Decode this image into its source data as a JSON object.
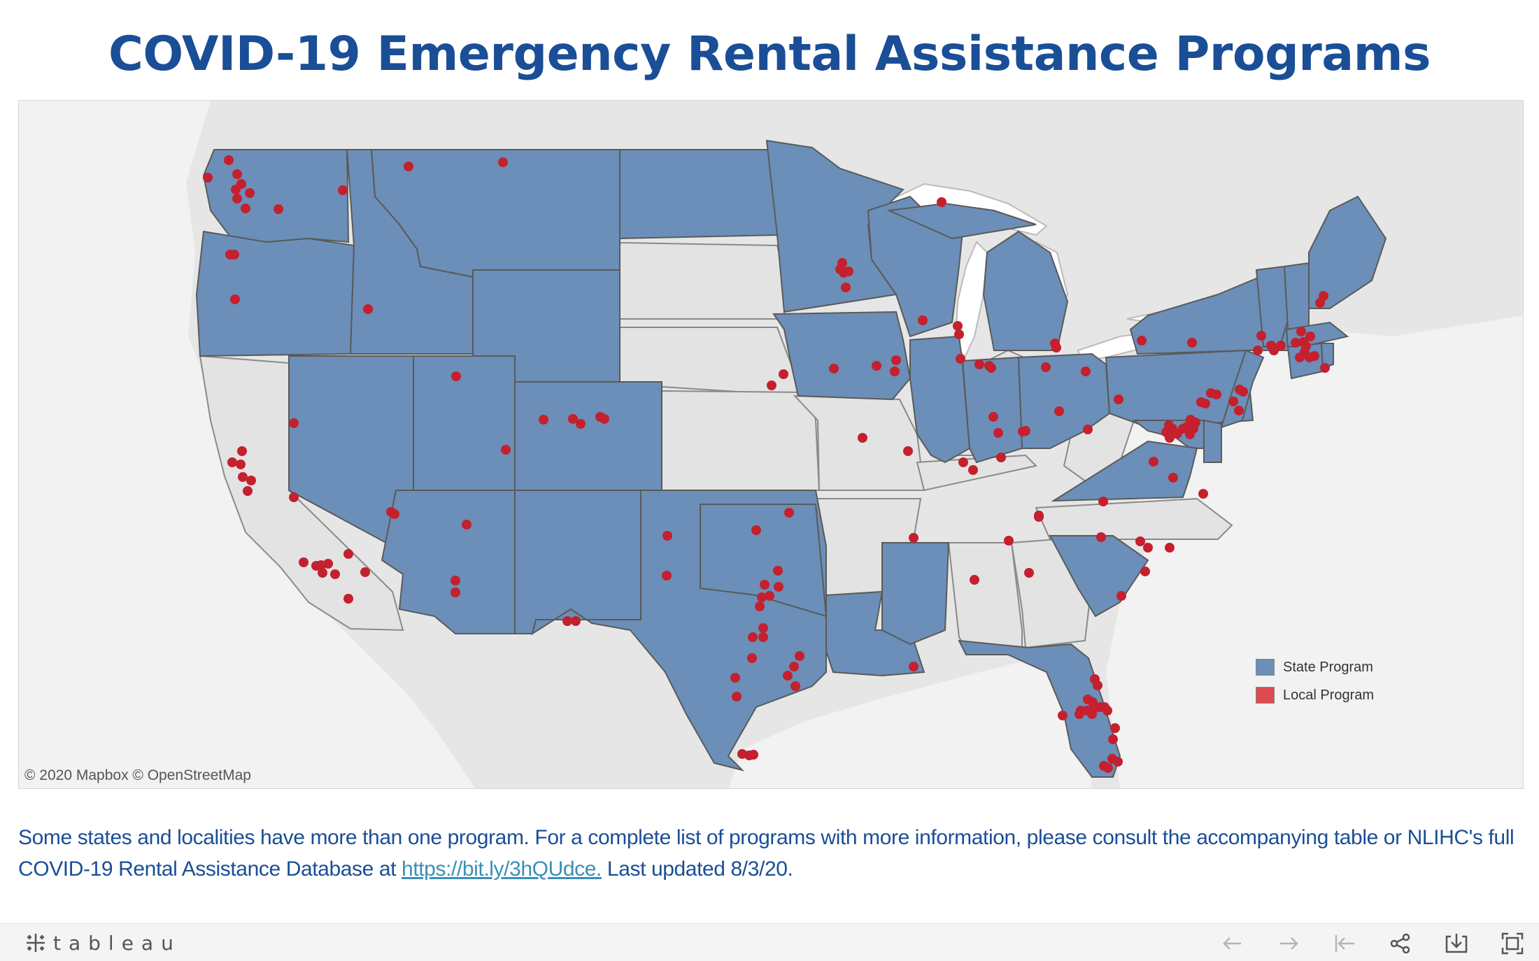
{
  "title": "COVID-19 Emergency Rental Assistance Programs",
  "map": {
    "attribution": "© 2020 Mapbox © OpenStreetMap",
    "legend": [
      {
        "label": "State Program",
        "color": "#6b8fb8"
      },
      {
        "label": "Local Program",
        "color": "#dd4b50"
      }
    ],
    "colors": {
      "state": "#6b8fb8",
      "nonstate": "#e3e3e3",
      "local": "#c4202e",
      "land": "#e6e6e6",
      "water": "#ffffff"
    },
    "state_program_states": [
      "WA",
      "OR",
      "ID",
      "MT",
      "ND",
      "MN",
      "WY",
      "NV",
      "UT",
      "CO",
      "AZ",
      "NM",
      "TX",
      "OK",
      "IA",
      "WI",
      "MI",
      "IL",
      "IN",
      "OH",
      "PA",
      "NY",
      "VT",
      "NH",
      "ME",
      "MA",
      "CT",
      "RI",
      "NJ",
      "DE",
      "MD",
      "VA",
      "SC",
      "MS",
      "LA",
      "FL"
    ]
  },
  "footnote": {
    "text1": "Some states and localities have more than one program. For a complete list of programs with more information, please consult the accompanying table or NLIHC's full COVID-19 Rental Assistance Database at",
    "link": "https://bit.ly/3hQUdce.",
    "text2": "Last updated 8/3/20."
  },
  "toolbar": {
    "logo": "tableau"
  }
}
